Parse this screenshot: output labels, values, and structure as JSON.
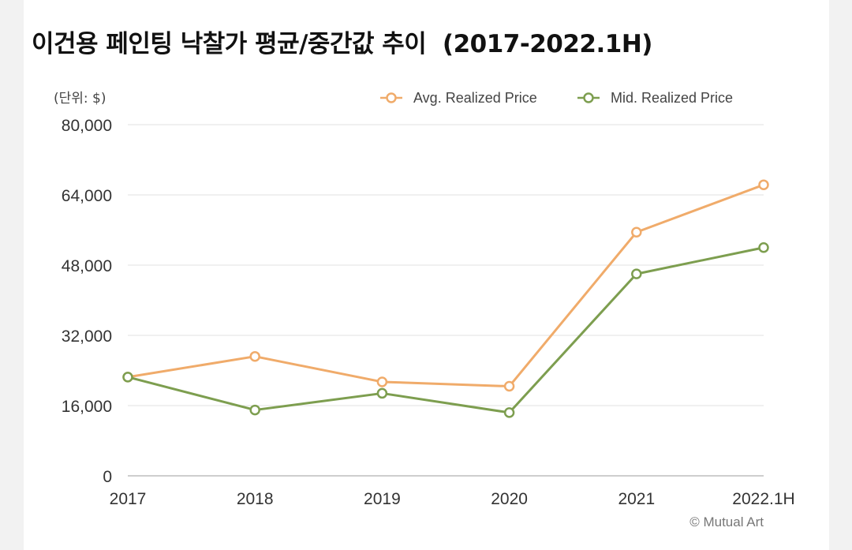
{
  "chart_data": {
    "type": "line",
    "title": "이건용 페인팅 낙찰가 평균/중간값 추이  (2017-2022.1H)",
    "unit_label": "(단위: $)",
    "categories": [
      "2017",
      "2018",
      "2019",
      "2020",
      "2021",
      "2022.1H"
    ],
    "series": [
      {
        "name": "Avg. Realized Price",
        "color": "#f0ab6a",
        "values": [
          22500,
          27200,
          21400,
          20400,
          55500,
          66300
        ]
      },
      {
        "name": "Mid. Realized Price",
        "color": "#7d9e4f",
        "values": [
          22500,
          15000,
          18800,
          14400,
          46000,
          52000
        ]
      }
    ],
    "ylim": [
      0,
      80000
    ],
    "yticks": [
      0,
      16000,
      32000,
      48000,
      64000,
      80000
    ],
    "ytick_labels": [
      "0",
      "16,000",
      "32,000",
      "48,000",
      "64,000",
      "80,000"
    ],
    "grid": true,
    "legend_position": "top-right",
    "credit": "© Mutual Art"
  }
}
